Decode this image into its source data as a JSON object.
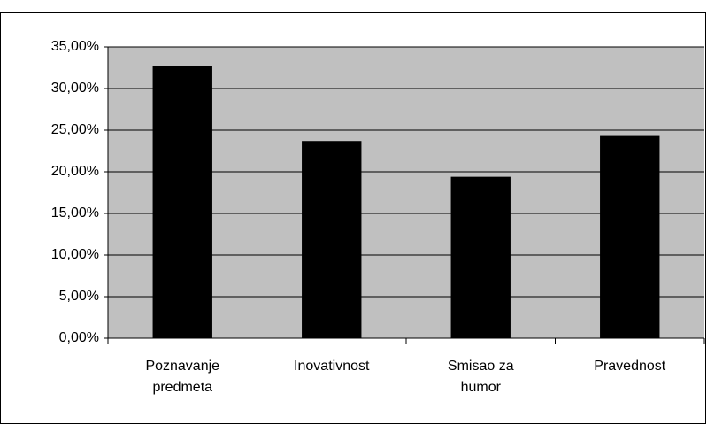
{
  "chart_data": {
    "type": "bar",
    "categories": [
      "Poznavanje predmeta",
      "Inovativnost",
      "Smisao za humor",
      "Pravednost"
    ],
    "values": [
      32.7,
      23.7,
      19.4,
      24.3
    ],
    "color": "#000000",
    "ylim": [
      0,
      35
    ],
    "yticks": [
      {
        "value": 0,
        "label": "0,00%"
      },
      {
        "value": 5,
        "label": "5,00%"
      },
      {
        "value": 10,
        "label": "10,00%"
      },
      {
        "value": 15,
        "label": "15,00%"
      },
      {
        "value": 20,
        "label": "20,00%"
      },
      {
        "value": 25,
        "label": "25,00%"
      },
      {
        "value": 30,
        "label": "30,00%"
      },
      {
        "value": 35,
        "label": "35,00%"
      }
    ],
    "grid": true
  }
}
